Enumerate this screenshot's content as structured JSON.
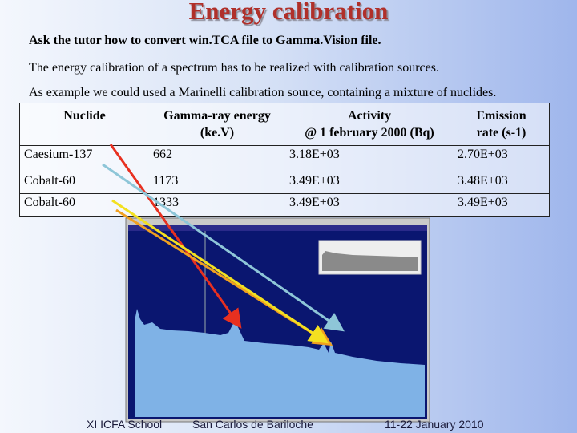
{
  "title": "Energy calibration",
  "paragraphs": [
    "Ask the tutor how to convert win.TCA file to Gamma.Vision file.",
    "The energy calibration of a spectrum has to be realized with calibration sources.",
    "As example we could used a Marinelli calibration source, containing a mixture of nuclides."
  ],
  "table": {
    "header": [
      [
        "Nuclide"
      ],
      [
        "Gamma-ray energy",
        "(ke.V)"
      ],
      [
        "Activity",
        "@ 1 february 2000 (Bq)"
      ],
      [
        "Emission",
        "rate (s-1)"
      ]
    ],
    "rows": [
      [
        "Caesium-137",
        "662",
        "3.18E+03",
        "2.70E+03"
      ],
      [
        "Cobalt-60",
        "1173",
        "3.49E+03",
        "3.48E+03"
      ],
      [
        "Cobalt-60",
        "1333",
        "3.49E+03",
        "3.49E+03"
      ]
    ]
  },
  "footer": [
    "XI ICFA School",
    "San Carlos de Bariloche",
    "11-22 January 2010"
  ]
}
